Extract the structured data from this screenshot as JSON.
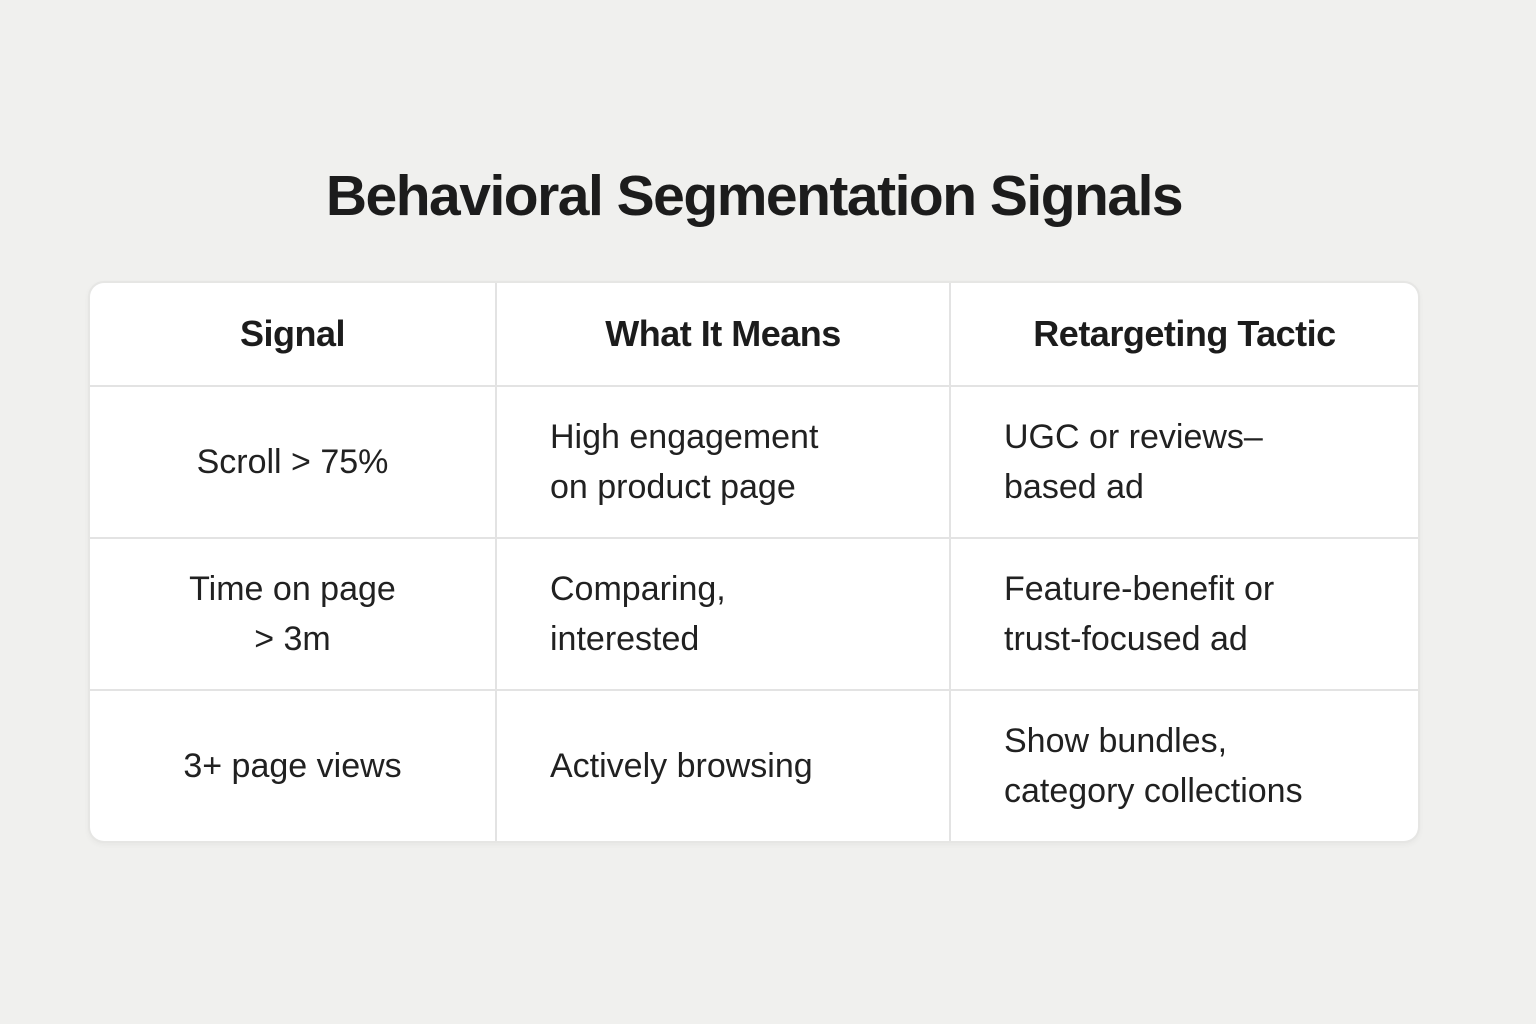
{
  "page": {
    "title": "Behavioral Segmentation Signals",
    "background_color": "#f0f0ee",
    "table_background_color": "#ffffff",
    "divider_color": "#e3e3e3",
    "text_color": "#1f1f1f"
  },
  "table": {
    "columns": [
      "Signal",
      "What It Means",
      "Retargeting Tactic"
    ],
    "rows": [
      {
        "signal": "Scroll > 75%",
        "meaning": "High engagement\non product page",
        "tactic": "UGC or reviews–\nbased ad"
      },
      {
        "signal": "Time on page\n> 3m",
        "meaning": "Comparing,\ninterested",
        "tactic": "Feature-benefit or\ntrust-focused ad"
      },
      {
        "signal": "3+ page views",
        "meaning": "Actively browsing",
        "tactic": "Show bundles,\ncategory collections"
      }
    ]
  }
}
